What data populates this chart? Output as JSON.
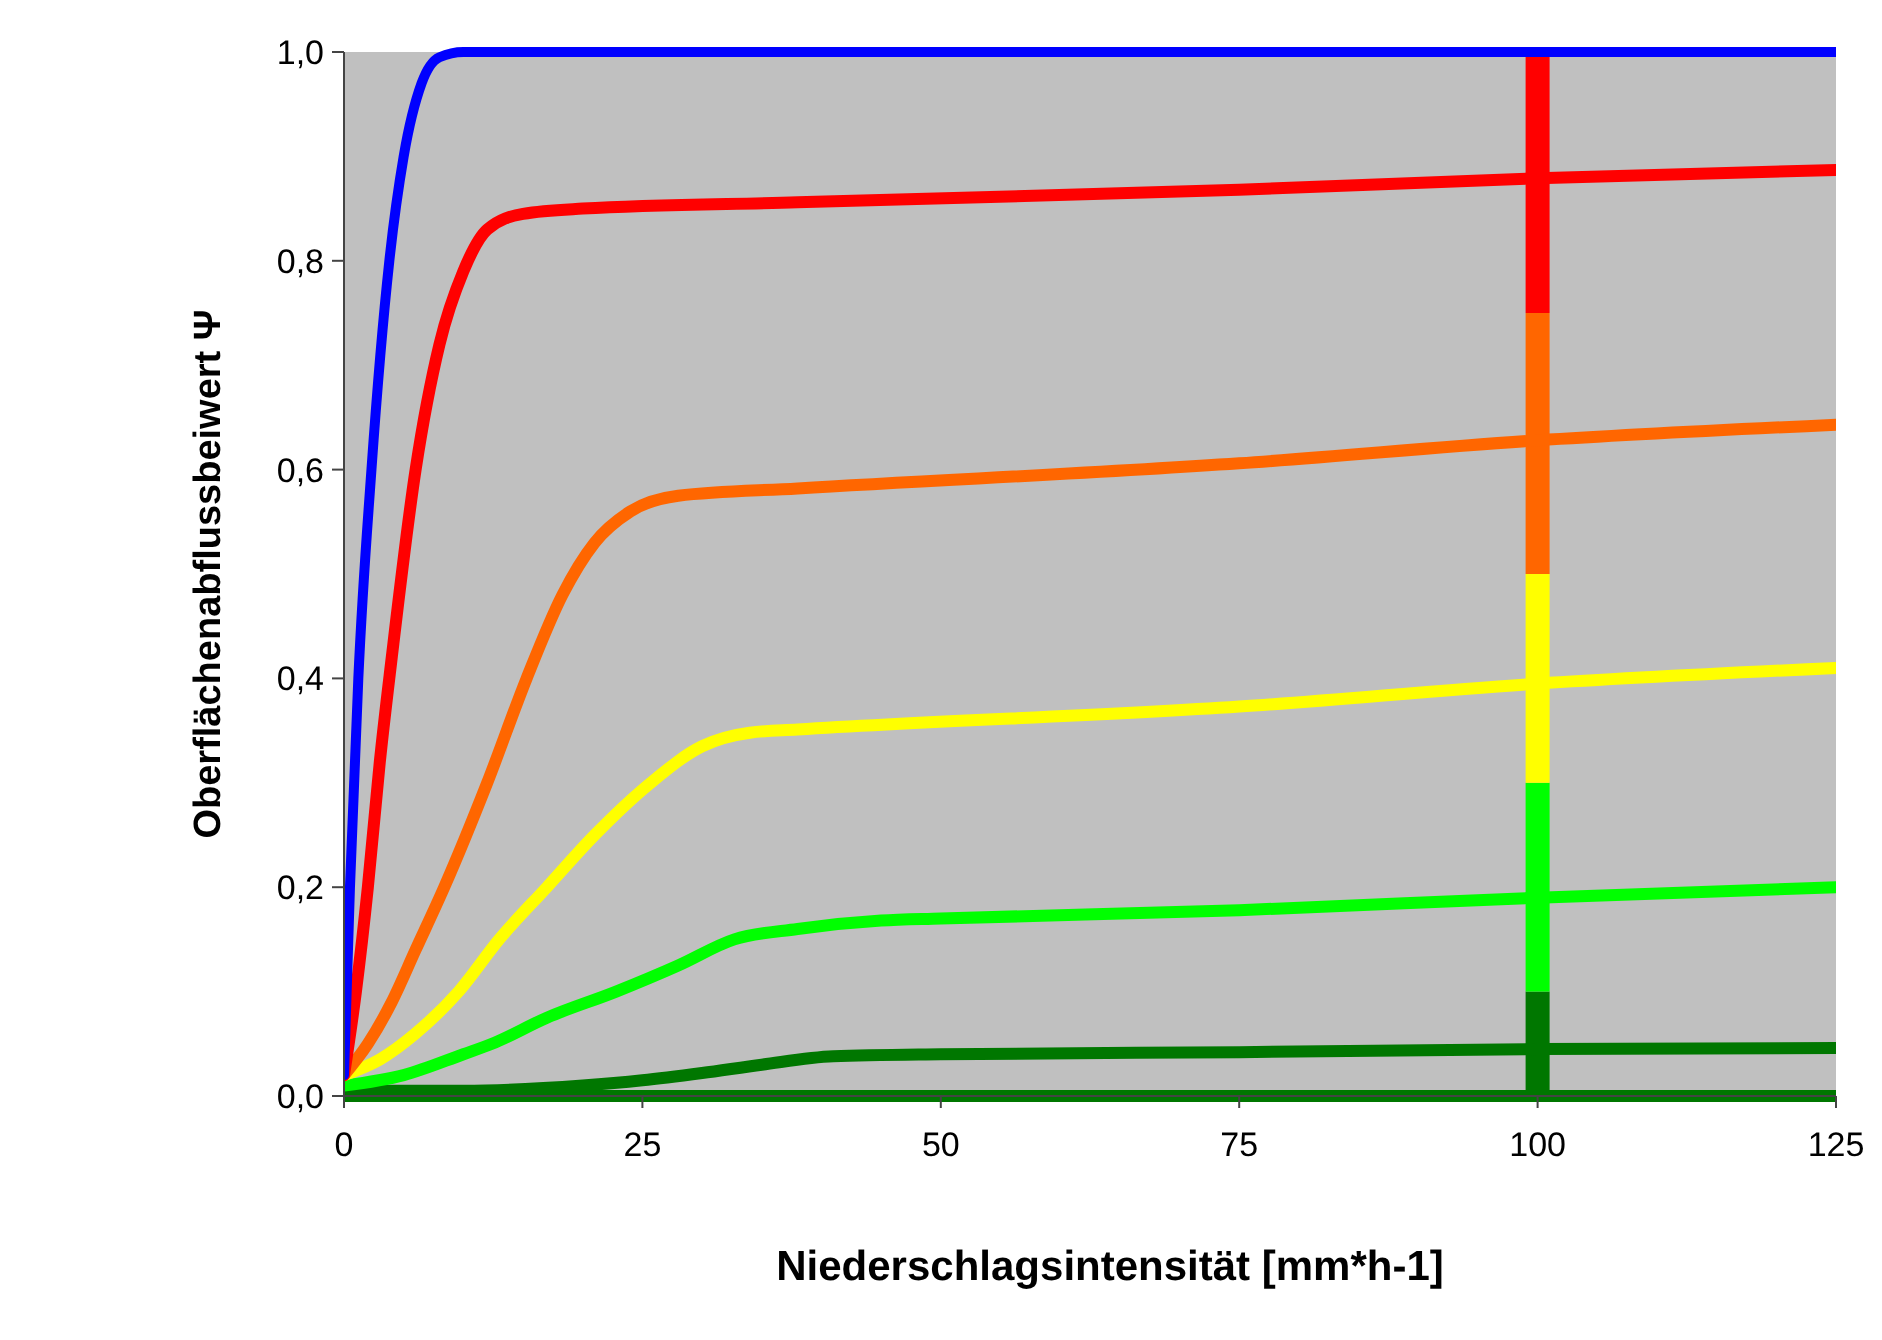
{
  "chart_data": {
    "type": "line",
    "xlabel": "Niederschlagsintensität [mm*h-1]",
    "ylabel": "Oberflächenabflussbeiwert Ψ",
    "xlim": [
      0,
      125
    ],
    "xticks": [
      0,
      25,
      50,
      75,
      100,
      125
    ],
    "ylim": [
      0,
      1
    ],
    "yticks": [
      {
        "value": 0,
        "label": "0,0"
      },
      {
        "value": 0.2,
        "label": "0,2"
      },
      {
        "value": 0.4,
        "label": "0,4"
      },
      {
        "value": 0.6,
        "label": "0,6"
      },
      {
        "value": 0.8,
        "label": "0,8"
      },
      {
        "value": 1,
        "label": "1,0"
      }
    ],
    "grid": false,
    "stacked": true,
    "marker": "none",
    "line_style": "solid",
    "series": [
      {
        "type": "bar",
        "color": "#007700",
        "x": [
          100
        ],
        "values": [
          0.1
        ]
      },
      {
        "type": "bar",
        "color": "#00ff00",
        "x": [
          100
        ],
        "values": [
          0.2
        ]
      },
      {
        "type": "bar",
        "color": "#ffff00",
        "x": [
          100
        ],
        "values": [
          0.2
        ]
      },
      {
        "type": "bar",
        "color": "#ff6600",
        "x": [
          100
        ],
        "values": [
          0.25
        ]
      },
      {
        "type": "bar",
        "color": "#ff0000",
        "x": [
          100
        ],
        "values": [
          0.25
        ]
      },
      {
        "color": "#007700",
        "x": [
          0,
          125
        ],
        "values": [
          0,
          0
        ]
      },
      {
        "color": "#007700",
        "x": [
          0,
          10,
          20,
          25,
          30,
          35,
          41,
          50,
          75,
          100,
          125
        ],
        "values": [
          0.005,
          0.005,
          0.01,
          0.015,
          0.022,
          0.03,
          0.038,
          0.04,
          0.042,
          0.045,
          0.046
        ]
      },
      {
        "color": "#00ff00",
        "x": [
          0,
          5,
          10,
          12.4,
          17,
          22.8,
          28,
          32.7,
          38,
          45,
          50,
          75,
          100,
          125
        ],
        "values": [
          0.01,
          0.02,
          0.04,
          0.05,
          0.075,
          0.1,
          0.125,
          0.15,
          0.16,
          0.168,
          0.17,
          0.178,
          0.19,
          0.2
        ]
      },
      {
        "color": "#ffff00",
        "x": [
          0,
          3,
          6,
          9.6,
          13,
          17,
          21,
          25.7,
          30,
          34,
          38,
          75,
          100,
          125
        ],
        "values": [
          0.02,
          0.035,
          0.06,
          0.1,
          0.15,
          0.2,
          0.25,
          0.3,
          0.335,
          0.348,
          0.351,
          0.373,
          0.395,
          0.41
        ]
      },
      {
        "color": "#ff6600",
        "x": [
          0,
          2,
          4,
          6,
          8.4,
          12,
          15.3,
          18.3,
          21,
          24,
          28,
          38,
          75,
          100,
          125
        ],
        "values": [
          0.02,
          0.05,
          0.09,
          0.14,
          0.2,
          0.3,
          0.4,
          0.48,
          0.53,
          0.56,
          0.575,
          0.582,
          0.606,
          0.628,
          0.643
        ]
      },
      {
        "color": "#ff0000",
        "x": [
          0,
          1,
          2,
          3,
          4,
          6,
          8,
          10,
          12,
          15,
          20,
          38,
          75,
          100,
          125
        ],
        "values": [
          0.02,
          0.1,
          0.2,
          0.32,
          0.42,
          0.6,
          0.72,
          0.79,
          0.83,
          0.845,
          0.85,
          0.856,
          0.868,
          0.879,
          0.887
        ]
      },
      {
        "color": "#0000ff",
        "x": [
          0,
          0.5,
          1.2,
          2.3,
          3.8,
          5,
          6.5,
          8,
          10,
          125
        ],
        "values": [
          0.02,
          0.2,
          0.4,
          0.6,
          0.8,
          0.9,
          0.97,
          0.995,
          1,
          1
        ]
      }
    ]
  }
}
